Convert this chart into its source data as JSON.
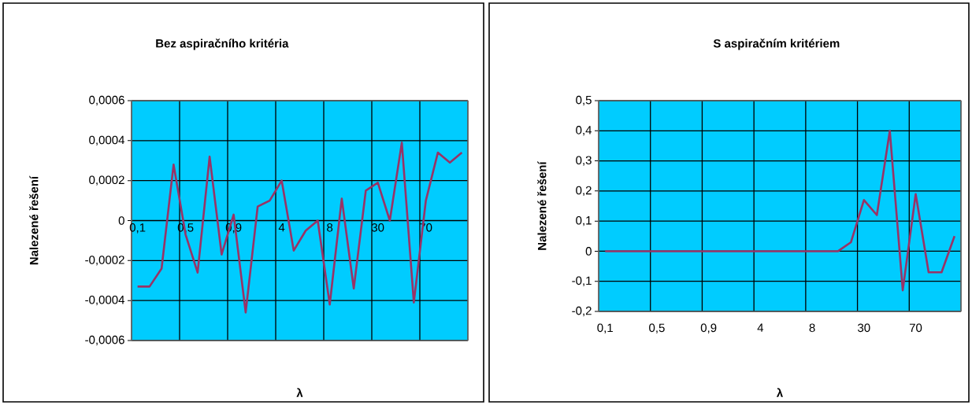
{
  "chart_data": [
    {
      "type": "line",
      "title": "Bez aspiračního kritéria",
      "xlabel": "λ",
      "ylabel": "Nalezené řešení",
      "categories": [
        "0,1",
        null,
        null,
        null,
        "0,5",
        null,
        null,
        null,
        "0,9",
        null,
        null,
        null,
        "4",
        null,
        null,
        null,
        "8",
        null,
        null,
        null,
        "30",
        null,
        null,
        null,
        "70",
        null,
        null,
        null
      ],
      "series": [
        {
          "color": "#993366",
          "values": [
            -0.00033,
            -0.00033,
            -0.00024,
            0.00028,
            -7e-05,
            -0.00026,
            0.00032,
            -0.00017,
            3e-05,
            -0.00046,
            7e-05,
            0.0001,
            0.0002,
            -0.00015,
            -5e-05,
            0.0,
            -0.00042,
            0.00011,
            -0.00034,
            0.00015,
            0.00019,
            0.0,
            0.00039,
            -0.00041,
            0.0001,
            0.00034,
            0.00029,
            0.00034
          ]
        }
      ],
      "ylim": [
        -0.0006,
        0.0006
      ],
      "yticks": [
        {
          "value": -0.0006,
          "label": "-0,0006"
        },
        {
          "value": -0.0004,
          "label": "-0,0004"
        },
        {
          "value": -0.0002,
          "label": "-0,0002"
        },
        0,
        {
          "value": 0.0002,
          "label": "0,0002"
        },
        {
          "value": 0.0004,
          "label": "0,0004"
        },
        {
          "value": 0.0006,
          "label": "0,0006"
        }
      ],
      "grid": true
    },
    {
      "type": "line",
      "title": "S aspiračním kritériem",
      "xlabel": "λ",
      "ylabel": "Nalezené řešení",
      "categories": [
        "0,1",
        null,
        null,
        null,
        "0,5",
        null,
        null,
        null,
        "0,9",
        null,
        null,
        null,
        "4",
        null,
        null,
        null,
        "8",
        null,
        null,
        null,
        "30",
        null,
        null,
        null,
        "70",
        null,
        null,
        null
      ],
      "series": [
        {
          "color": "#993366",
          "values": [
            0,
            0,
            0,
            0,
            0,
            0,
            0,
            0,
            0,
            0,
            0,
            0,
            0,
            0,
            0,
            0,
            0,
            0,
            0,
            0.03,
            0.17,
            0.12,
            0.4,
            -0.13,
            0.19,
            -0.07,
            -0.07,
            0.05
          ]
        }
      ],
      "ylim": [
        -0.2,
        0.5
      ],
      "yticks": [
        {
          "value": -0.2,
          "label": "-0,2"
        },
        {
          "value": -0.1,
          "label": "-0,1"
        },
        0,
        {
          "value": 0.1,
          "label": "0,1"
        },
        {
          "value": 0.2,
          "label": "0,2"
        },
        {
          "value": 0.3,
          "label": "0,3"
        },
        {
          "value": 0.4,
          "label": "0,4"
        },
        {
          "value": 0.5,
          "label": "0,5"
        }
      ],
      "grid": true
    }
  ]
}
